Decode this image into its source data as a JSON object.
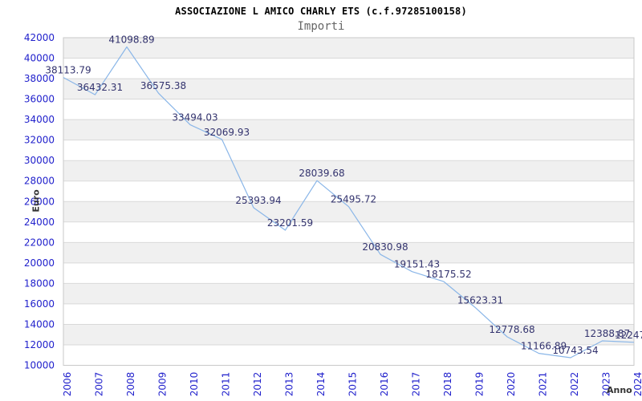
{
  "title": "ASSOCIAZIONE L AMICO CHARLY ETS (c.f.97285100158)",
  "subtitle": "Importi",
  "chart_data": {
    "type": "line",
    "title": "ASSOCIAZIONE L AMICO CHARLY ETS (c.f.97285100158)",
    "subtitle": "Importi",
    "xlabel": "Anno",
    "ylabel": "Euro",
    "x": [
      2006,
      2007,
      2008,
      2009,
      2010,
      2011,
      2012,
      2013,
      2014,
      2015,
      2016,
      2017,
      2018,
      2019,
      2020,
      2021,
      2022,
      2023,
      2024
    ],
    "x_tick_labels": [
      "2006",
      "2007",
      "2008",
      "2009",
      "2010",
      "2011",
      "2012",
      "2013",
      "2014",
      "2015",
      "2016",
      "2017",
      "2018",
      "2019",
      "2020",
      "2021",
      "2022",
      "2023",
      "2024"
    ],
    "values": [
      38113.79,
      36432.31,
      41098.89,
      36575.38,
      33494.03,
      32069.93,
      25393.94,
      23201.59,
      28039.68,
      25495.72,
      20830.98,
      19151.43,
      18175.52,
      15623.31,
      12778.68,
      11166.89,
      10743.54,
      12388.87,
      12247
    ],
    "point_labels": [
      "38113.79",
      "36432.31",
      "41098.89",
      "36575.38",
      "33494.03",
      "32069.93",
      "25393.94",
      "23201.59",
      "28039.68",
      "25495.72",
      "20830.98",
      "19151.43",
      "18175.52",
      "15623.31",
      "12778.68",
      "11166.89",
      "10743.54",
      "12388.87",
      "12247."
    ],
    "ylim": [
      10000,
      42000
    ],
    "ytick_step": 2000,
    "y_tick_labels": [
      "42000",
      "40000",
      "38000",
      "36000",
      "34000",
      "32000",
      "30000",
      "28000",
      "26000",
      "24000",
      "22000",
      "20000",
      "18000",
      "16000",
      "14000",
      "12000",
      "10000"
    ],
    "grid": "horizontal gridlines with alternating shaded bands",
    "legend": "none",
    "colors": {
      "line": "#8ab6e8",
      "band": "#f0f0f0",
      "gridline": "#d9d9d9",
      "plot_border": "#c9c9c9",
      "axis_tick_text": "#2121cc",
      "point_label_text": "#33336e",
      "title_text": "#000000",
      "subtitle_text": "#666666",
      "axis_title_text": "#333333",
      "background": "#ffffff"
    }
  }
}
